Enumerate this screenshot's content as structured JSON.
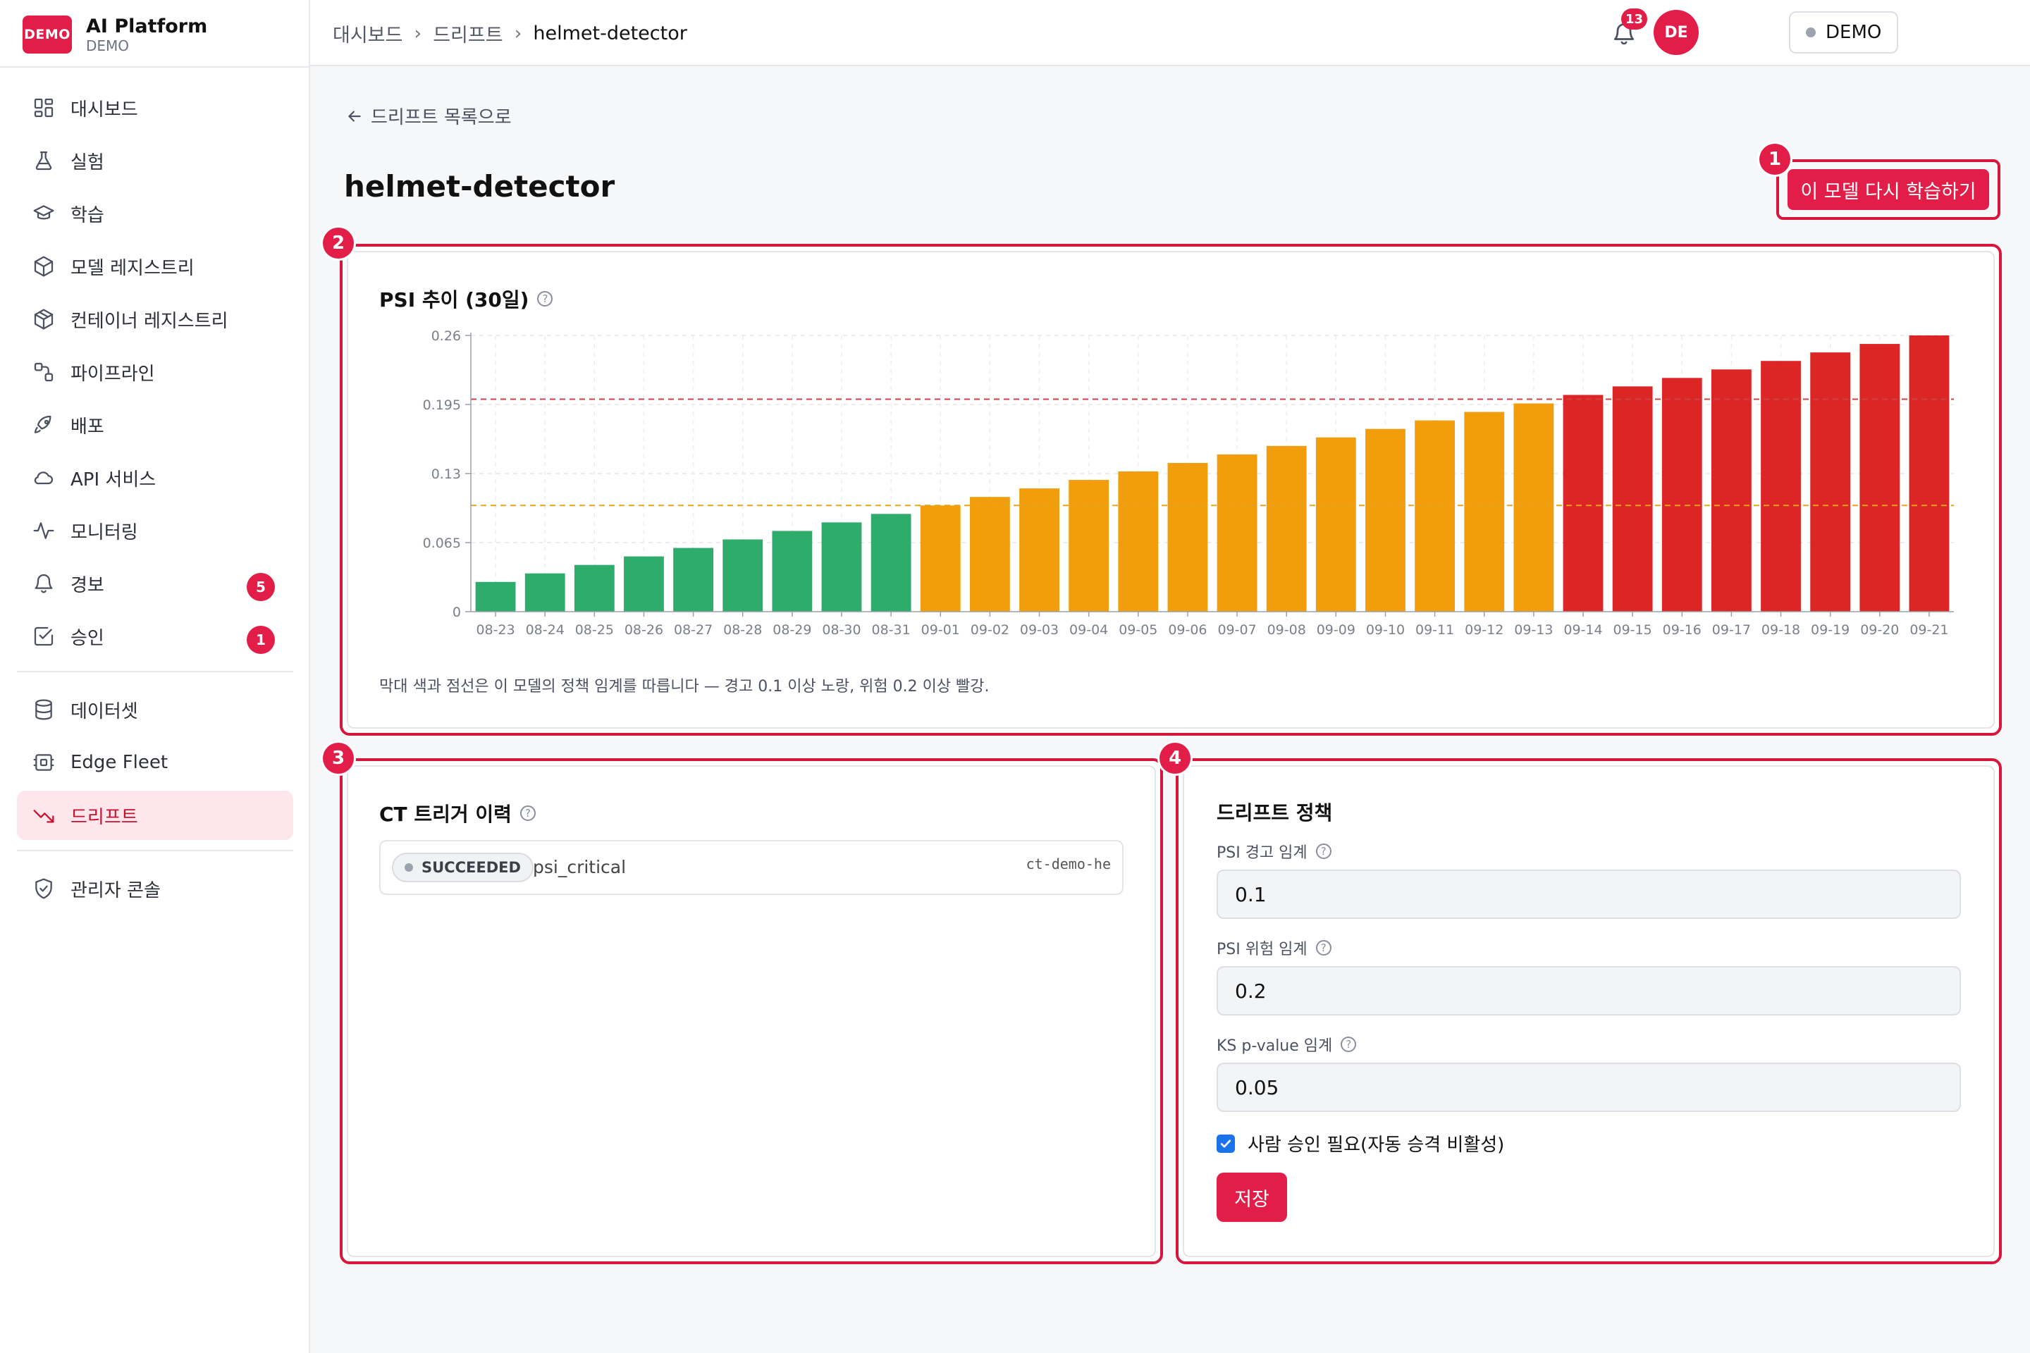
{
  "brand": {
    "logo_text": "DEMO",
    "title": "AI Platform",
    "subtitle": "DEMO"
  },
  "sidebar": {
    "items": [
      {
        "label": "대시보드",
        "icon": "dashboard-icon"
      },
      {
        "label": "실험",
        "icon": "flask-icon"
      },
      {
        "label": "학습",
        "icon": "graduation-cap-icon"
      },
      {
        "label": "모델 레지스트리",
        "icon": "cube-icon"
      },
      {
        "label": "컨테이너 레지스트리",
        "icon": "box-icon"
      },
      {
        "label": "파이프라인",
        "icon": "pipeline-icon"
      },
      {
        "label": "배포",
        "icon": "rocket-icon"
      },
      {
        "label": "API 서비스",
        "icon": "cloud-icon"
      },
      {
        "label": "모니터링",
        "icon": "activity-icon"
      },
      {
        "label": "경보",
        "icon": "bell-icon",
        "badge": "5"
      },
      {
        "label": "승인",
        "icon": "check-square-icon",
        "badge": "1"
      }
    ],
    "items2": [
      {
        "label": "데이터셋",
        "icon": "database-icon"
      },
      {
        "label": "Edge Fleet",
        "icon": "chip-icon"
      },
      {
        "label": "드리프트",
        "icon": "trending-down-icon",
        "active": true
      }
    ],
    "items3": [
      {
        "label": "관리자 콘솔",
        "icon": "shield-icon"
      }
    ]
  },
  "topbar": {
    "breadcrumb": [
      "대시보드",
      "드리프트",
      "helmet-detector"
    ],
    "env_label": "DEMO",
    "notification_count": "13",
    "avatar_initials": "DE"
  },
  "page": {
    "back_label": "드리프트 목록으로",
    "title": "helmet-detector",
    "retrain_label": "이 모델 다시 학습하기"
  },
  "callouts": [
    "1",
    "2",
    "3",
    "4"
  ],
  "psi_card": {
    "title": "PSI 추이 (30일)",
    "note": "막대 색과 점선은 이 모델의 정책 임계를 따릅니다 — 경고 0.1 이상 노랑, 위험 0.2 이상 빨강."
  },
  "chart_data": {
    "type": "bar",
    "title": "PSI 추이 (30일)",
    "categories": [
      "08-23",
      "08-24",
      "08-25",
      "08-26",
      "08-27",
      "08-28",
      "08-29",
      "08-30",
      "08-31",
      "09-01",
      "09-02",
      "09-03",
      "09-04",
      "09-05",
      "09-06",
      "09-07",
      "09-08",
      "09-09",
      "09-10",
      "09-11",
      "09-12",
      "09-13",
      "09-14",
      "09-15",
      "09-16",
      "09-17",
      "09-18",
      "09-19",
      "09-20",
      "09-21"
    ],
    "values": [
      0.028,
      0.036,
      0.044,
      0.052,
      0.06,
      0.068,
      0.076,
      0.084,
      0.092,
      0.1,
      0.108,
      0.116,
      0.124,
      0.132,
      0.14,
      0.148,
      0.156,
      0.164,
      0.172,
      0.18,
      0.188,
      0.196,
      0.204,
      0.212,
      0.22,
      0.228,
      0.236,
      0.244,
      0.252,
      0.26
    ],
    "yticks": [
      "0",
      "0.065",
      "0.13",
      "0.195",
      "0.26"
    ],
    "ylim": [
      0,
      0.26
    ],
    "thresholds": {
      "warning": 0.1,
      "critical": 0.2
    },
    "colors": {
      "ok": "#2eac6b",
      "warning": "#f29e0c",
      "critical": "#dc2626",
      "warning_line": "#e6a21a",
      "critical_line": "#d14343"
    },
    "grid": true
  },
  "ct_card": {
    "title": "CT 트리거 이력",
    "rows": [
      {
        "status": "SUCCEEDED",
        "reason": "psi_critical",
        "id": "ct-demo-he"
      }
    ]
  },
  "policy_card": {
    "title": "드리프트 정책",
    "psi_warning_label": "PSI 경고 임계",
    "psi_warning_value": "0.1",
    "psi_critical_label": "PSI 위험 임계",
    "psi_critical_value": "0.2",
    "ks_label": "KS p-value 임계",
    "ks_value": "0.05",
    "approval_label": "사람 승인 필요(자동 승격 비활성)",
    "approval_checked": true,
    "save_label": "저장"
  }
}
